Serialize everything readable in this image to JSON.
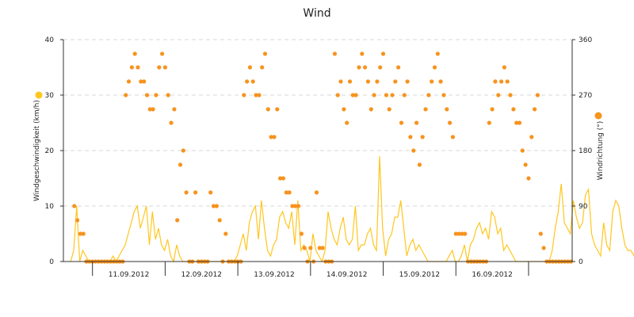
{
  "chart_data": {
    "type": "line",
    "title": "Wind",
    "ylabel": "Windgeschwindigkeit (km/h)",
    "y2label": "Windrichtung (°)",
    "ylim": [
      0,
      40
    ],
    "y2lim": [
      0,
      360
    ],
    "yticks": [
      "0",
      "10",
      "20",
      "30",
      "40"
    ],
    "y2ticks": [
      "0",
      "90",
      "180",
      "270",
      "360"
    ],
    "xticks": [
      "11.09.2012",
      "12.09.2012",
      "13.09.2012",
      "14.09.2012",
      "15.09.2012",
      "16.09.2012"
    ],
    "grid": true,
    "colors": {
      "speed": "#ffc61e",
      "direction": "#f7931e",
      "grid": "#d9d9d9",
      "axis": "#333333"
    },
    "series": [
      {
        "name": "",
        "axis": "left",
        "style": "line",
        "x_start_day": 10.7,
        "x_step_hours": 1,
        "values": [
          0,
          2,
          10,
          0,
          2,
          1,
          0,
          0,
          0,
          0,
          0,
          0,
          0,
          0,
          1,
          0,
          1,
          2,
          3,
          5,
          7,
          9,
          10,
          6,
          8,
          10,
          3,
          9,
          4,
          6,
          3,
          2,
          4,
          1,
          0,
          3,
          1,
          0,
          0,
          0,
          0,
          0,
          0,
          0,
          0,
          0,
          0,
          0,
          0,
          0,
          0,
          0,
          0,
          0,
          0,
          1,
          3,
          5,
          2,
          7,
          9,
          10,
          4,
          11,
          6,
          2,
          1,
          3,
          4,
          8,
          9,
          7,
          6,
          9,
          3,
          11,
          2,
          3,
          2,
          0,
          5,
          2,
          1,
          0,
          2,
          9,
          6,
          4,
          3,
          6,
          8,
          4,
          3,
          4,
          10,
          2,
          3,
          3,
          5,
          6,
          3,
          2,
          19,
          6,
          1,
          4,
          5,
          8,
          8,
          11,
          6,
          1,
          3,
          4,
          2,
          3,
          2,
          1,
          0,
          0,
          0,
          0,
          0,
          0,
          0,
          1,
          2,
          0,
          0,
          1,
          3,
          0,
          3,
          4,
          6,
          7,
          5,
          6,
          4,
          9,
          8,
          5,
          6,
          2,
          3,
          2,
          1,
          0,
          0,
          0,
          0,
          0,
          0,
          0,
          0,
          0,
          0,
          0,
          0,
          2,
          6,
          9,
          14,
          7,
          6,
          5,
          11,
          8,
          6,
          7,
          12,
          13,
          5,
          3,
          2,
          1,
          7,
          3,
          2,
          9,
          11,
          10,
          6,
          3,
          2,
          2,
          1,
          0,
          0,
          0,
          1,
          3,
          4,
          6,
          8,
          9,
          7,
          5,
          6,
          8,
          3,
          5,
          4,
          6,
          3,
          3,
          2,
          3,
          1,
          2,
          0,
          0,
          0,
          0,
          0,
          1,
          2,
          0,
          2,
          5,
          8,
          9,
          8,
          7,
          4,
          2,
          3,
          1,
          2,
          0,
          0,
          1,
          3,
          5,
          7,
          6,
          5,
          9,
          8,
          7,
          8,
          6,
          4,
          6,
          3,
          2,
          1,
          1,
          0,
          2,
          3,
          0,
          5
        ]
      },
      {
        "name": "",
        "axis": "right",
        "style": "points",
        "x_start_day": 10.75,
        "x_step_hours": 1,
        "values": [
          90,
          67,
          45,
          45,
          0,
          0,
          0,
          0,
          0,
          0,
          0,
          0,
          0,
          0,
          0,
          0,
          0,
          270,
          292,
          315,
          337,
          315,
          292,
          292,
          270,
          247,
          247,
          270,
          315,
          337,
          315,
          270,
          225,
          247,
          67,
          157,
          180,
          112,
          0,
          0,
          112,
          0,
          0,
          0,
          0,
          112,
          90,
          90,
          67,
          0,
          45,
          0,
          0,
          0,
          0,
          0,
          270,
          292,
          315,
          292,
          270,
          270,
          315,
          337,
          247,
          202,
          202,
          247,
          135,
          135,
          112,
          112,
          90,
          90,
          90,
          45,
          22,
          0,
          22,
          0,
          112,
          22,
          22,
          0,
          0,
          0,
          337,
          270,
          292,
          247,
          225,
          292,
          270,
          270,
          315,
          337,
          315,
          292,
          247,
          270,
          292,
          315,
          337,
          270,
          247,
          270,
          292,
          315,
          225,
          270,
          292,
          202,
          180,
          225,
          157,
          202,
          247,
          270,
          292,
          315,
          337,
          292,
          270,
          247,
          225,
          202,
          45,
          45,
          45,
          45,
          0,
          0,
          0,
          0,
          0,
          0,
          0,
          225,
          247,
          292,
          270,
          292,
          315,
          292,
          270,
          247,
          225,
          225,
          180,
          157,
          135,
          202,
          247,
          270,
          45,
          22,
          0,
          0,
          0,
          0,
          0,
          0,
          0,
          0,
          0,
          0,
          0,
          0,
          0,
          180,
          22,
          0,
          0,
          45,
          45,
          45,
          0,
          0,
          0,
          0,
          0,
          270,
          292,
          315,
          337,
          315,
          292,
          270,
          247,
          225,
          270,
          292,
          315,
          337,
          292,
          270,
          247,
          225,
          0,
          22,
          0,
          0,
          0,
          0,
          0,
          0,
          0,
          0,
          0,
          0,
          0,
          0,
          157,
          180,
          225,
          270,
          292,
          315,
          337,
          315,
          292,
          270,
          247,
          270,
          292,
          315,
          292,
          270,
          247,
          225,
          202,
          157,
          135,
          157,
          180,
          135,
          112,
          90,
          67,
          67,
          0,
          0,
          0,
          0,
          22,
          0,
          0,
          0,
          22,
          0,
          0,
          0,
          0,
          112,
          135,
          135,
          112,
          90,
          112,
          135,
          157,
          180,
          157,
          180,
          157,
          135,
          157,
          180,
          202,
          225,
          247,
          270,
          292,
          270,
          247,
          225,
          0,
          22,
          45,
          67,
          90,
          112,
          135,
          135,
          112
        ]
      }
    ]
  }
}
